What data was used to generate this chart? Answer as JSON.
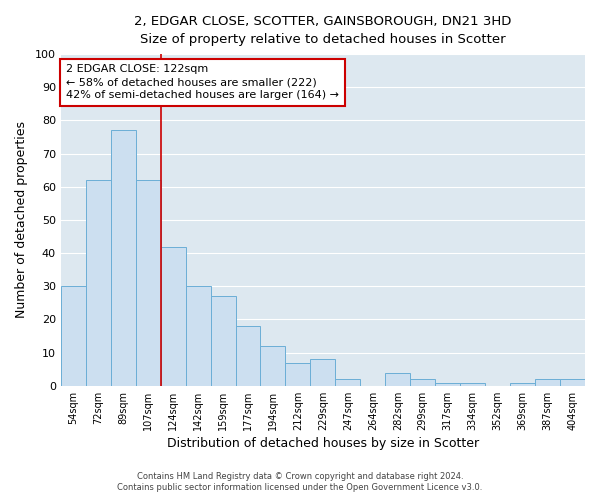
{
  "title_line1": "2, EDGAR CLOSE, SCOTTER, GAINSBOROUGH, DN21 3HD",
  "title_line2": "Size of property relative to detached houses in Scotter",
  "xlabel": "Distribution of detached houses by size in Scotter",
  "ylabel": "Number of detached properties",
  "categories": [
    "54sqm",
    "72sqm",
    "89sqm",
    "107sqm",
    "124sqm",
    "142sqm",
    "159sqm",
    "177sqm",
    "194sqm",
    "212sqm",
    "229sqm",
    "247sqm",
    "264sqm",
    "282sqm",
    "299sqm",
    "317sqm",
    "334sqm",
    "352sqm",
    "369sqm",
    "387sqm",
    "404sqm"
  ],
  "values": [
    30,
    62,
    77,
    62,
    42,
    30,
    27,
    18,
    12,
    7,
    8,
    2,
    0,
    4,
    2,
    1,
    1,
    0,
    1,
    2,
    2
  ],
  "bar_color": "#ccdff0",
  "bar_edge_color": "#6baed6",
  "bar_width": 1.0,
  "vline_x": 4,
  "vline_color": "#cc0000",
  "annotation_line1": "2 EDGAR CLOSE: 122sqm",
  "annotation_line2": "← 58% of detached houses are smaller (222)",
  "annotation_line3": "42% of semi-detached houses are larger (164) →",
  "annotation_box_color": "#ffffff",
  "annotation_box_edge_color": "#cc0000",
  "ylim": [
    0,
    100
  ],
  "plot_bg_color": "#dde8f0",
  "fig_bg_color": "#ffffff",
  "grid_color": "#ffffff",
  "footer_line1": "Contains HM Land Registry data © Crown copyright and database right 2024.",
  "footer_line2": "Contains public sector information licensed under the Open Government Licence v3.0."
}
